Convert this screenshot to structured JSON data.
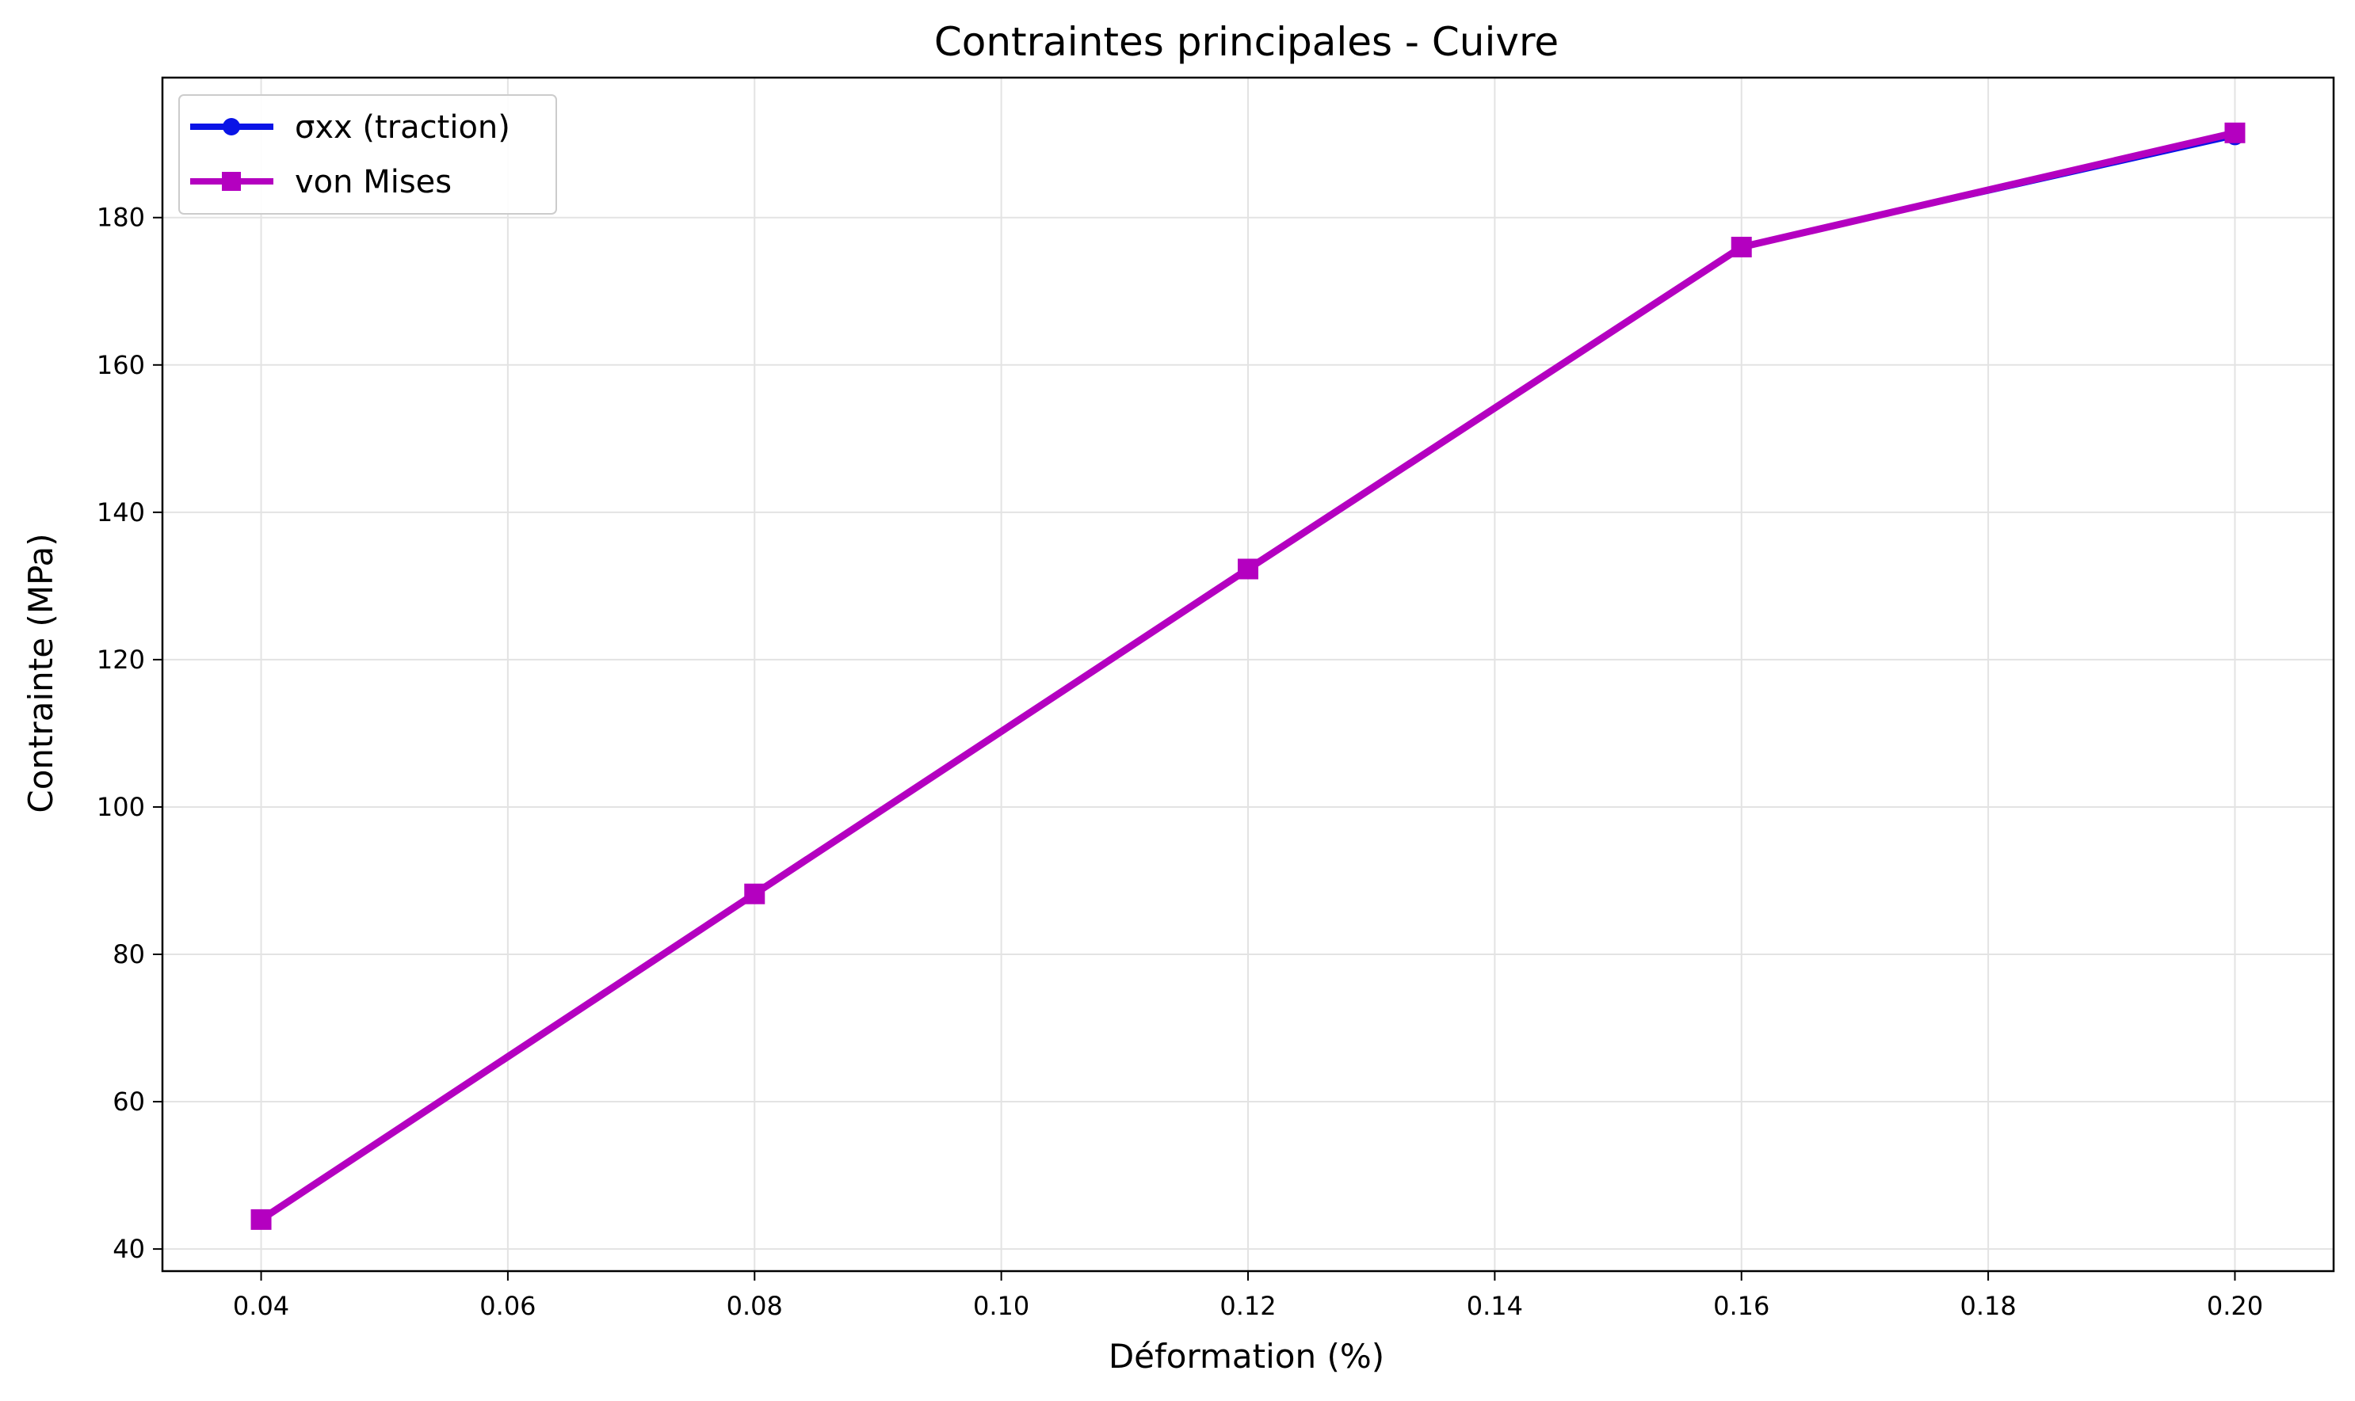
{
  "chart_data": {
    "type": "line",
    "title": "Contraintes principales - Cuivre",
    "xlabel": "Déformation (%)",
    "ylabel": "Contrainte (MPa)",
    "x": [
      0.04,
      0.08,
      0.12,
      0.16,
      0.2
    ],
    "xlim": [
      0.032,
      0.208
    ],
    "ylim": [
      37,
      199
    ],
    "xticks": [
      "0.04",
      "0.06",
      "0.08",
      "0.10",
      "0.12",
      "0.14",
      "0.16",
      "0.18",
      "0.20"
    ],
    "xtick_values": [
      0.04,
      0.06,
      0.08,
      0.1,
      0.12,
      0.14,
      0.16,
      0.18,
      0.2
    ],
    "yticks": [
      "40",
      "60",
      "80",
      "100",
      "120",
      "140",
      "160",
      "180"
    ],
    "ytick_values": [
      40,
      60,
      80,
      100,
      120,
      140,
      160,
      180
    ],
    "grid": true,
    "legend_position": "top-left",
    "series": [
      {
        "name": "σxx (traction)",
        "values": [
          44,
          88.2,
          132.3,
          176,
          191
        ],
        "color": "#0a14e6",
        "marker": "circle"
      },
      {
        "name": "von Mises",
        "values": [
          44,
          88.2,
          132.3,
          176,
          191.5
        ],
        "color": "#b400c0",
        "marker": "square"
      }
    ]
  }
}
